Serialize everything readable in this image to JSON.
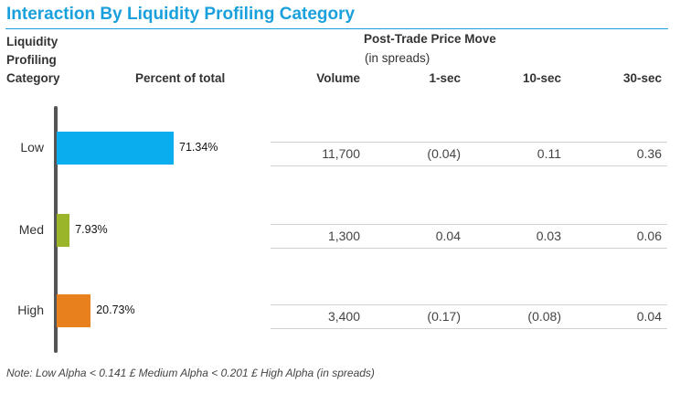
{
  "title": "Interaction By Liquidity Profiling Category",
  "headers": {
    "category_line1": "Liquidity",
    "category_line2": "Profiling",
    "category_line3": "Category",
    "percent": "Percent of total",
    "volume": "Volume",
    "price_move_title": "Post-Trade Price Move",
    "price_move_sub": "(in spreads)",
    "sec1": "1-sec",
    "sec10": "10-sec",
    "sec30": "30-sec"
  },
  "chart_data": {
    "type": "bar",
    "orientation": "horizontal",
    "categories": [
      "Low",
      "Med",
      "High"
    ],
    "values": [
      71.34,
      7.93,
      20.73
    ],
    "value_labels": [
      "71.34%",
      "7.93%",
      "20.73%"
    ],
    "colors": [
      "#0aaeef",
      "#9ab52a",
      "#e8801e"
    ],
    "xlim": [
      0,
      100
    ]
  },
  "rows": [
    {
      "category": "Low",
      "volume": "11,700",
      "s1": "(0.04)",
      "s10": "0.11",
      "s30": "0.36"
    },
    {
      "category": "Med",
      "volume": "1,300",
      "s1": "0.04",
      "s10": "0.03",
      "s30": "0.06"
    },
    {
      "category": "High",
      "volume": "3,400",
      "s1": "(0.17)",
      "s10": "(0.08)",
      "s30": "0.04"
    }
  ],
  "note": "Note: Low Alpha < 0.141  £ Medium  Alpha < 0.201 £ High Alpha (in spreads)"
}
